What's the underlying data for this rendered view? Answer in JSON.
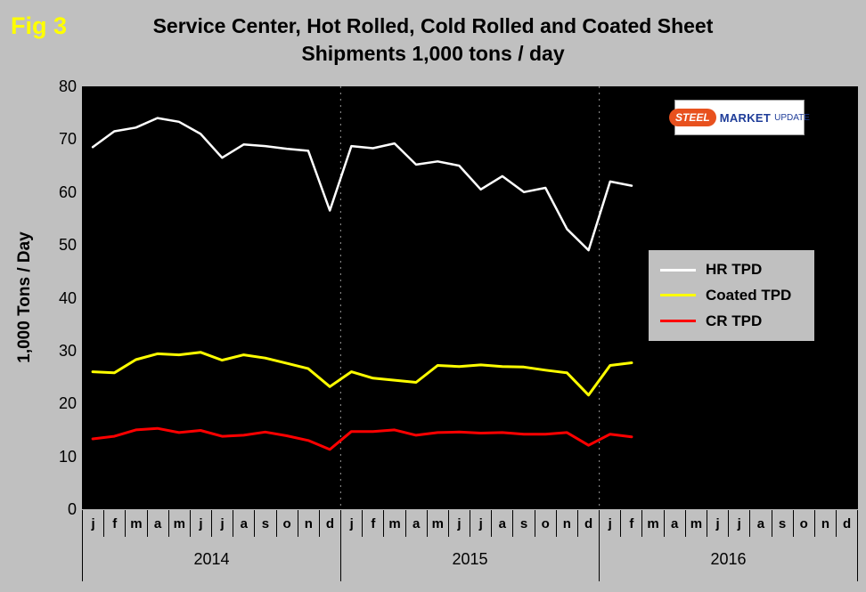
{
  "header": {
    "fig_label": "Fig 3",
    "title_line1": "Service Center, Hot Rolled, Cold Rolled and Coated Sheet",
    "title_line2": "Shipments 1,000 tons / day"
  },
  "logo": {
    "steel": "STEEL",
    "market": "MARKET",
    "update": "UPDATE"
  },
  "colors": {
    "page_bg": "#c0c0c0",
    "plot_bg": "#000000",
    "fig_label": "#ffff00",
    "hr_line": "#ffffff",
    "coated_line": "#ffff00",
    "cr_line": "#ff0000",
    "year_divider": "#9a9a9a"
  },
  "chart_data": {
    "type": "line",
    "title": "Service Center, Hot Rolled, Cold Rolled and Coated Sheet Shipments 1,000 tons / day",
    "ylabel": "1,000 Tons / Day",
    "xlabel": "",
    "ylim": [
      0,
      80
    ],
    "y_ticks": [
      80,
      70,
      60,
      50,
      40,
      30,
      20,
      10,
      0
    ],
    "grid": "vertical-dashed-year-dividers-only",
    "legend_position": "middle-right",
    "years": [
      "2014",
      "2015",
      "2016"
    ],
    "month_letters": [
      "j",
      "f",
      "m",
      "a",
      "m",
      "j",
      "j",
      "a",
      "s",
      "o",
      "n",
      "d"
    ],
    "x_months_total": 36,
    "data_start": "Jan 2014",
    "data_end": "Feb 2016",
    "series": [
      {
        "name": "HR TPD",
        "color": "#ffffff",
        "stroke_width": 2.5,
        "values": [
          68.5,
          71.5,
          72.2,
          74,
          73.3,
          71,
          66.5,
          69,
          68.7,
          68.2,
          67.8,
          56.5,
          68.7,
          68.3,
          69.2,
          65.2,
          65.8,
          65,
          60.5,
          63,
          60,
          60.8,
          53,
          49,
          62,
          61.2
        ]
      },
      {
        "name": "Coated TPD",
        "color": "#ffff00",
        "stroke_width": 3,
        "values": [
          26,
          25.8,
          28.3,
          29.4,
          29.2,
          29.7,
          28.2,
          29.2,
          28.6,
          27.6,
          26.6,
          23.2,
          26,
          24.8,
          24.4,
          24,
          27.2,
          27,
          27.3,
          27,
          26.9,
          26.3,
          25.8,
          21.6,
          27.2,
          27.7
        ]
      },
      {
        "name": "CR TPD",
        "color": "#ff0000",
        "stroke_width": 3,
        "values": [
          13.3,
          13.8,
          15,
          15.3,
          14.5,
          14.9,
          13.8,
          14,
          14.6,
          13.9,
          13,
          11.3,
          14.7,
          14.7,
          15,
          14,
          14.5,
          14.6,
          14.4,
          14.5,
          14.2,
          14.2,
          14.5,
          12.1,
          14.2,
          13.7
        ]
      }
    ]
  }
}
